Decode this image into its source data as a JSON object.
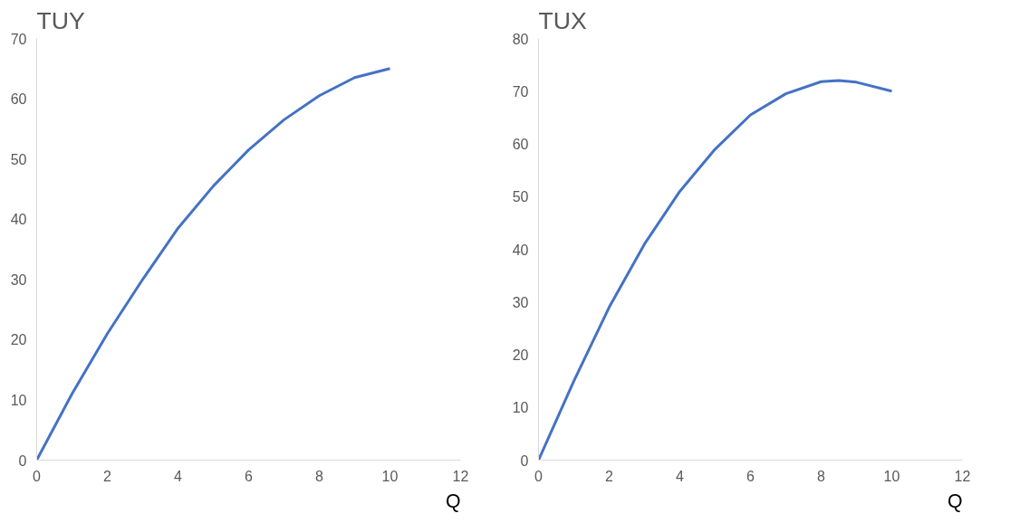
{
  "chart_data": [
    {
      "type": "line",
      "title": "TUY",
      "xlabel": "Q",
      "x": [
        0,
        1,
        2,
        3,
        4,
        5,
        6,
        7,
        8,
        9,
        10
      ],
      "series": [
        {
          "color": "#4472c4",
          "values": [
            0,
            11,
            21,
            30,
            38.5,
            45.5,
            51.5,
            56.5,
            60.5,
            63.5,
            65
          ]
        }
      ],
      "xlim": [
        0,
        12
      ],
      "xticks": [
        0,
        2,
        4,
        6,
        8,
        10,
        12
      ],
      "ylim": [
        0,
        70
      ],
      "yticks": [
        0,
        10,
        20,
        30,
        40,
        50,
        60,
        70
      ],
      "grid": false,
      "marker": "none",
      "line_style": "solid"
    },
    {
      "type": "line",
      "title": "TUX",
      "xlabel": "Q",
      "x": [
        0,
        1,
        2,
        3,
        4,
        5,
        6,
        7,
        8,
        8.5,
        9,
        10
      ],
      "series": [
        {
          "color": "#4472c4",
          "values": [
            0,
            15,
            29,
            41,
            51,
            59,
            65.5,
            69.5,
            71.8,
            72,
            71.7,
            70
          ]
        }
      ],
      "xlim": [
        0,
        12
      ],
      "xticks": [
        0,
        2,
        4,
        6,
        8,
        10,
        12
      ],
      "ylim": [
        0,
        80
      ],
      "yticks": [
        0,
        10,
        20,
        30,
        40,
        50,
        60,
        70,
        80
      ],
      "grid": false,
      "marker": "none",
      "line_style": "solid"
    }
  ]
}
